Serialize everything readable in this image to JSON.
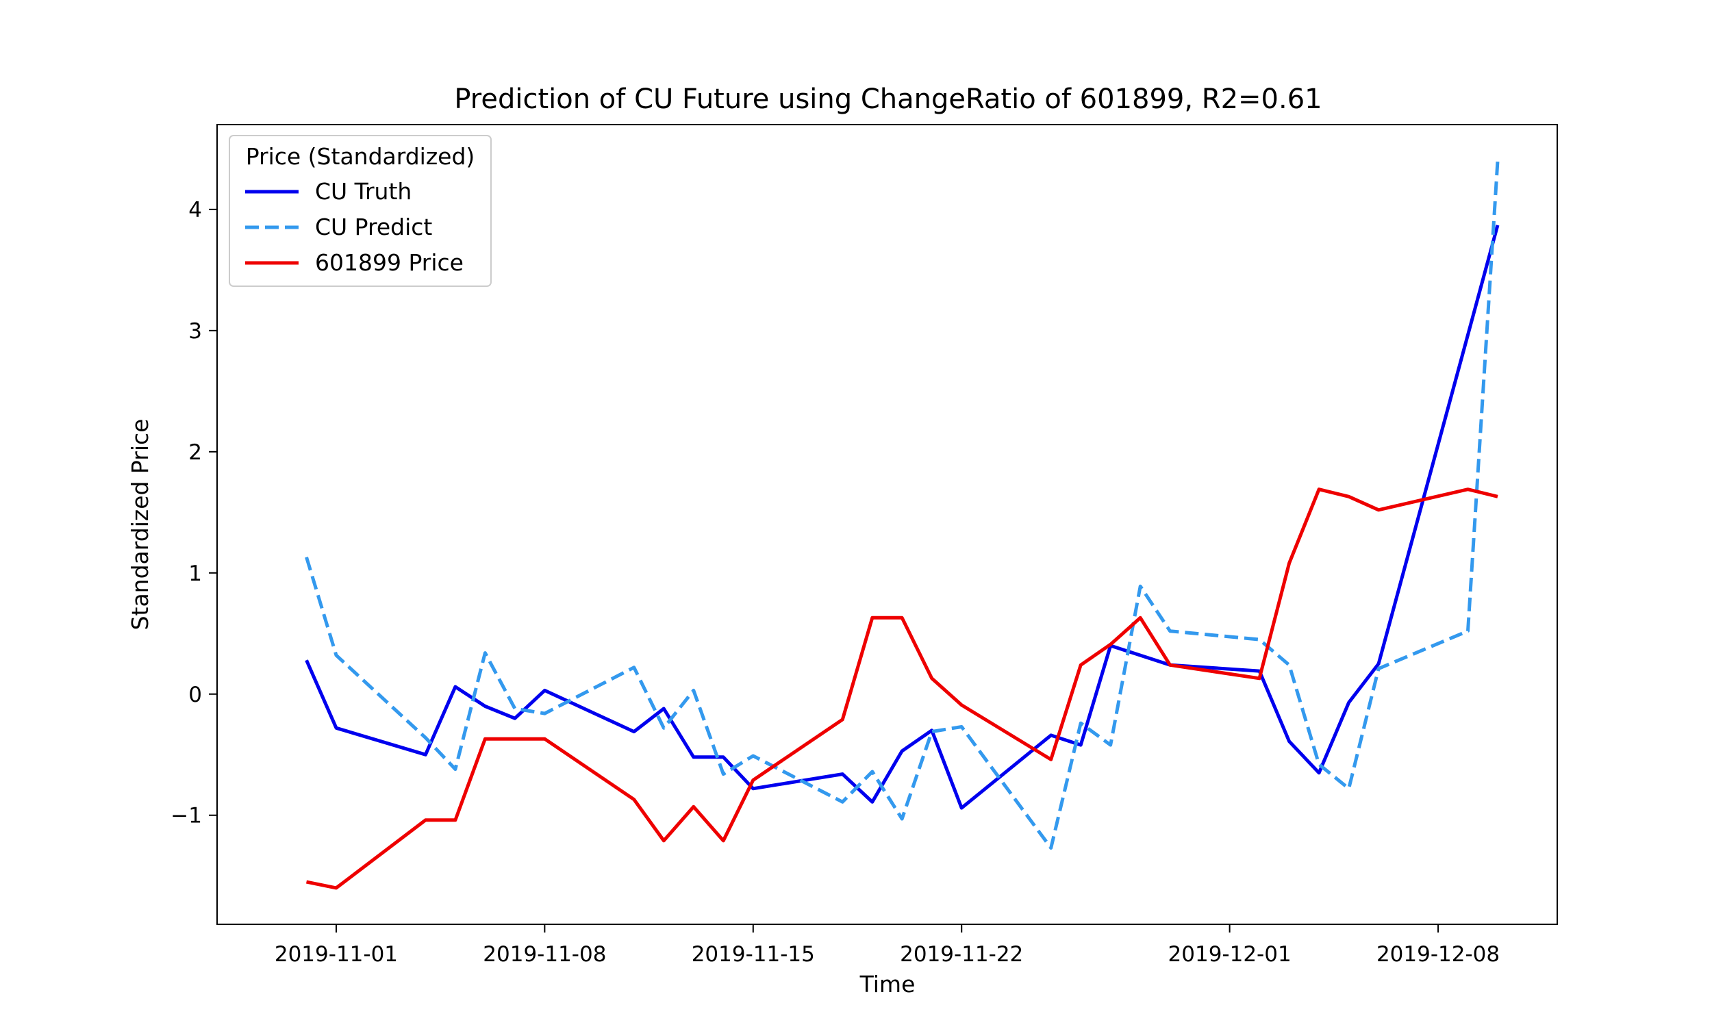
{
  "chart_data": {
    "type": "line",
    "title": "Prediction of CU Future using ChangeRatio of 601899, R2=0.61",
    "xlabel": "Time",
    "ylabel": "Standardized Price",
    "xlim": [
      "2019-10-28",
      "2019-12-12"
    ],
    "ylim": [
      -1.9,
      4.7
    ],
    "x_ticks": [
      "2019-11-01",
      "2019-11-08",
      "2019-11-15",
      "2019-11-22",
      "2019-12-01",
      "2019-12-08"
    ],
    "y_ticks": [
      -1,
      0,
      1,
      2,
      3,
      4
    ],
    "y_tick_labels": [
      "−1",
      "0",
      "1",
      "2",
      "3",
      "4"
    ],
    "legend": {
      "title": "Price (Standardized)",
      "location": "top-left"
    },
    "series": [
      {
        "name": "CU Truth",
        "color": "#0000ee",
        "style": "solid",
        "points": [
          [
            "2019-10-31",
            0.28
          ],
          [
            "2019-11-01",
            -0.28
          ],
          [
            "2019-11-04",
            -0.5
          ],
          [
            "2019-11-05",
            0.06
          ],
          [
            "2019-11-06",
            -0.1
          ],
          [
            "2019-11-07",
            -0.2
          ],
          [
            "2019-11-08",
            0.03
          ],
          [
            "2019-11-11",
            -0.31
          ],
          [
            "2019-11-12",
            -0.12
          ],
          [
            "2019-11-13",
            -0.52
          ],
          [
            "2019-11-14",
            -0.52
          ],
          [
            "2019-11-15",
            -0.78
          ],
          [
            "2019-11-18",
            -0.66
          ],
          [
            "2019-11-19",
            -0.89
          ],
          [
            "2019-11-20",
            -0.47
          ],
          [
            "2019-11-21",
            -0.3
          ],
          [
            "2019-11-22",
            -0.94
          ],
          [
            "2019-11-25",
            -0.34
          ],
          [
            "2019-11-26",
            -0.42
          ],
          [
            "2019-11-27",
            0.4
          ],
          [
            "2019-11-29",
            0.24
          ],
          [
            "2019-12-02",
            0.19
          ],
          [
            "2019-12-03",
            -0.39
          ],
          [
            "2019-12-04",
            -0.65
          ],
          [
            "2019-12-05",
            -0.07
          ],
          [
            "2019-12-06",
            0.25
          ],
          [
            "2019-12-10",
            3.87
          ]
        ]
      },
      {
        "name": "CU Predict",
        "color": "#3399ee",
        "style": "dashed",
        "points": [
          [
            "2019-10-31",
            1.13
          ],
          [
            "2019-11-01",
            0.32
          ],
          [
            "2019-11-04",
            -0.36
          ],
          [
            "2019-11-05",
            -0.62
          ],
          [
            "2019-11-06",
            0.34
          ],
          [
            "2019-11-07",
            -0.12
          ],
          [
            "2019-11-08",
            -0.16
          ],
          [
            "2019-11-11",
            0.22
          ],
          [
            "2019-11-12",
            -0.28
          ],
          [
            "2019-11-13",
            0.03
          ],
          [
            "2019-11-14",
            -0.66
          ],
          [
            "2019-11-15",
            -0.51
          ],
          [
            "2019-11-18",
            -0.89
          ],
          [
            "2019-11-19",
            -0.64
          ],
          [
            "2019-11-20",
            -1.03
          ],
          [
            "2019-11-21",
            -0.31
          ],
          [
            "2019-11-22",
            -0.27
          ],
          [
            "2019-11-25",
            -1.27
          ],
          [
            "2019-11-26",
            -0.24
          ],
          [
            "2019-11-27",
            -0.42
          ],
          [
            "2019-11-28",
            0.89
          ],
          [
            "2019-11-29",
            0.52
          ],
          [
            "2019-12-02",
            0.45
          ],
          [
            "2019-12-03",
            0.24
          ],
          [
            "2019-12-04",
            -0.58
          ],
          [
            "2019-12-05",
            -0.78
          ],
          [
            "2019-12-06",
            0.21
          ],
          [
            "2019-12-09",
            0.52
          ],
          [
            "2019-12-10",
            4.4
          ]
        ]
      },
      {
        "name": "601899 Price",
        "color": "#ee0000",
        "style": "solid",
        "points": [
          [
            "2019-10-31",
            -1.55
          ],
          [
            "2019-11-01",
            -1.6
          ],
          [
            "2019-11-04",
            -1.04
          ],
          [
            "2019-11-05",
            -1.04
          ],
          [
            "2019-11-06",
            -0.37
          ],
          [
            "2019-11-07",
            -0.37
          ],
          [
            "2019-11-08",
            -0.37
          ],
          [
            "2019-11-11",
            -0.87
          ],
          [
            "2019-11-12",
            -1.21
          ],
          [
            "2019-11-13",
            -0.93
          ],
          [
            "2019-11-14",
            -1.21
          ],
          [
            "2019-11-15",
            -0.71
          ],
          [
            "2019-11-18",
            -0.21
          ],
          [
            "2019-11-19",
            0.63
          ],
          [
            "2019-11-20",
            0.63
          ],
          [
            "2019-11-21",
            0.13
          ],
          [
            "2019-11-22",
            -0.09
          ],
          [
            "2019-11-25",
            -0.54
          ],
          [
            "2019-11-26",
            0.24
          ],
          [
            "2019-11-27",
            0.41
          ],
          [
            "2019-11-28",
            0.63
          ],
          [
            "2019-11-29",
            0.24
          ],
          [
            "2019-12-02",
            0.13
          ],
          [
            "2019-12-03",
            1.08
          ],
          [
            "2019-12-04",
            1.69
          ],
          [
            "2019-12-05",
            1.63
          ],
          [
            "2019-12-06",
            1.52
          ],
          [
            "2019-12-09",
            1.69
          ],
          [
            "2019-12-10",
            1.63
          ]
        ]
      }
    ]
  }
}
